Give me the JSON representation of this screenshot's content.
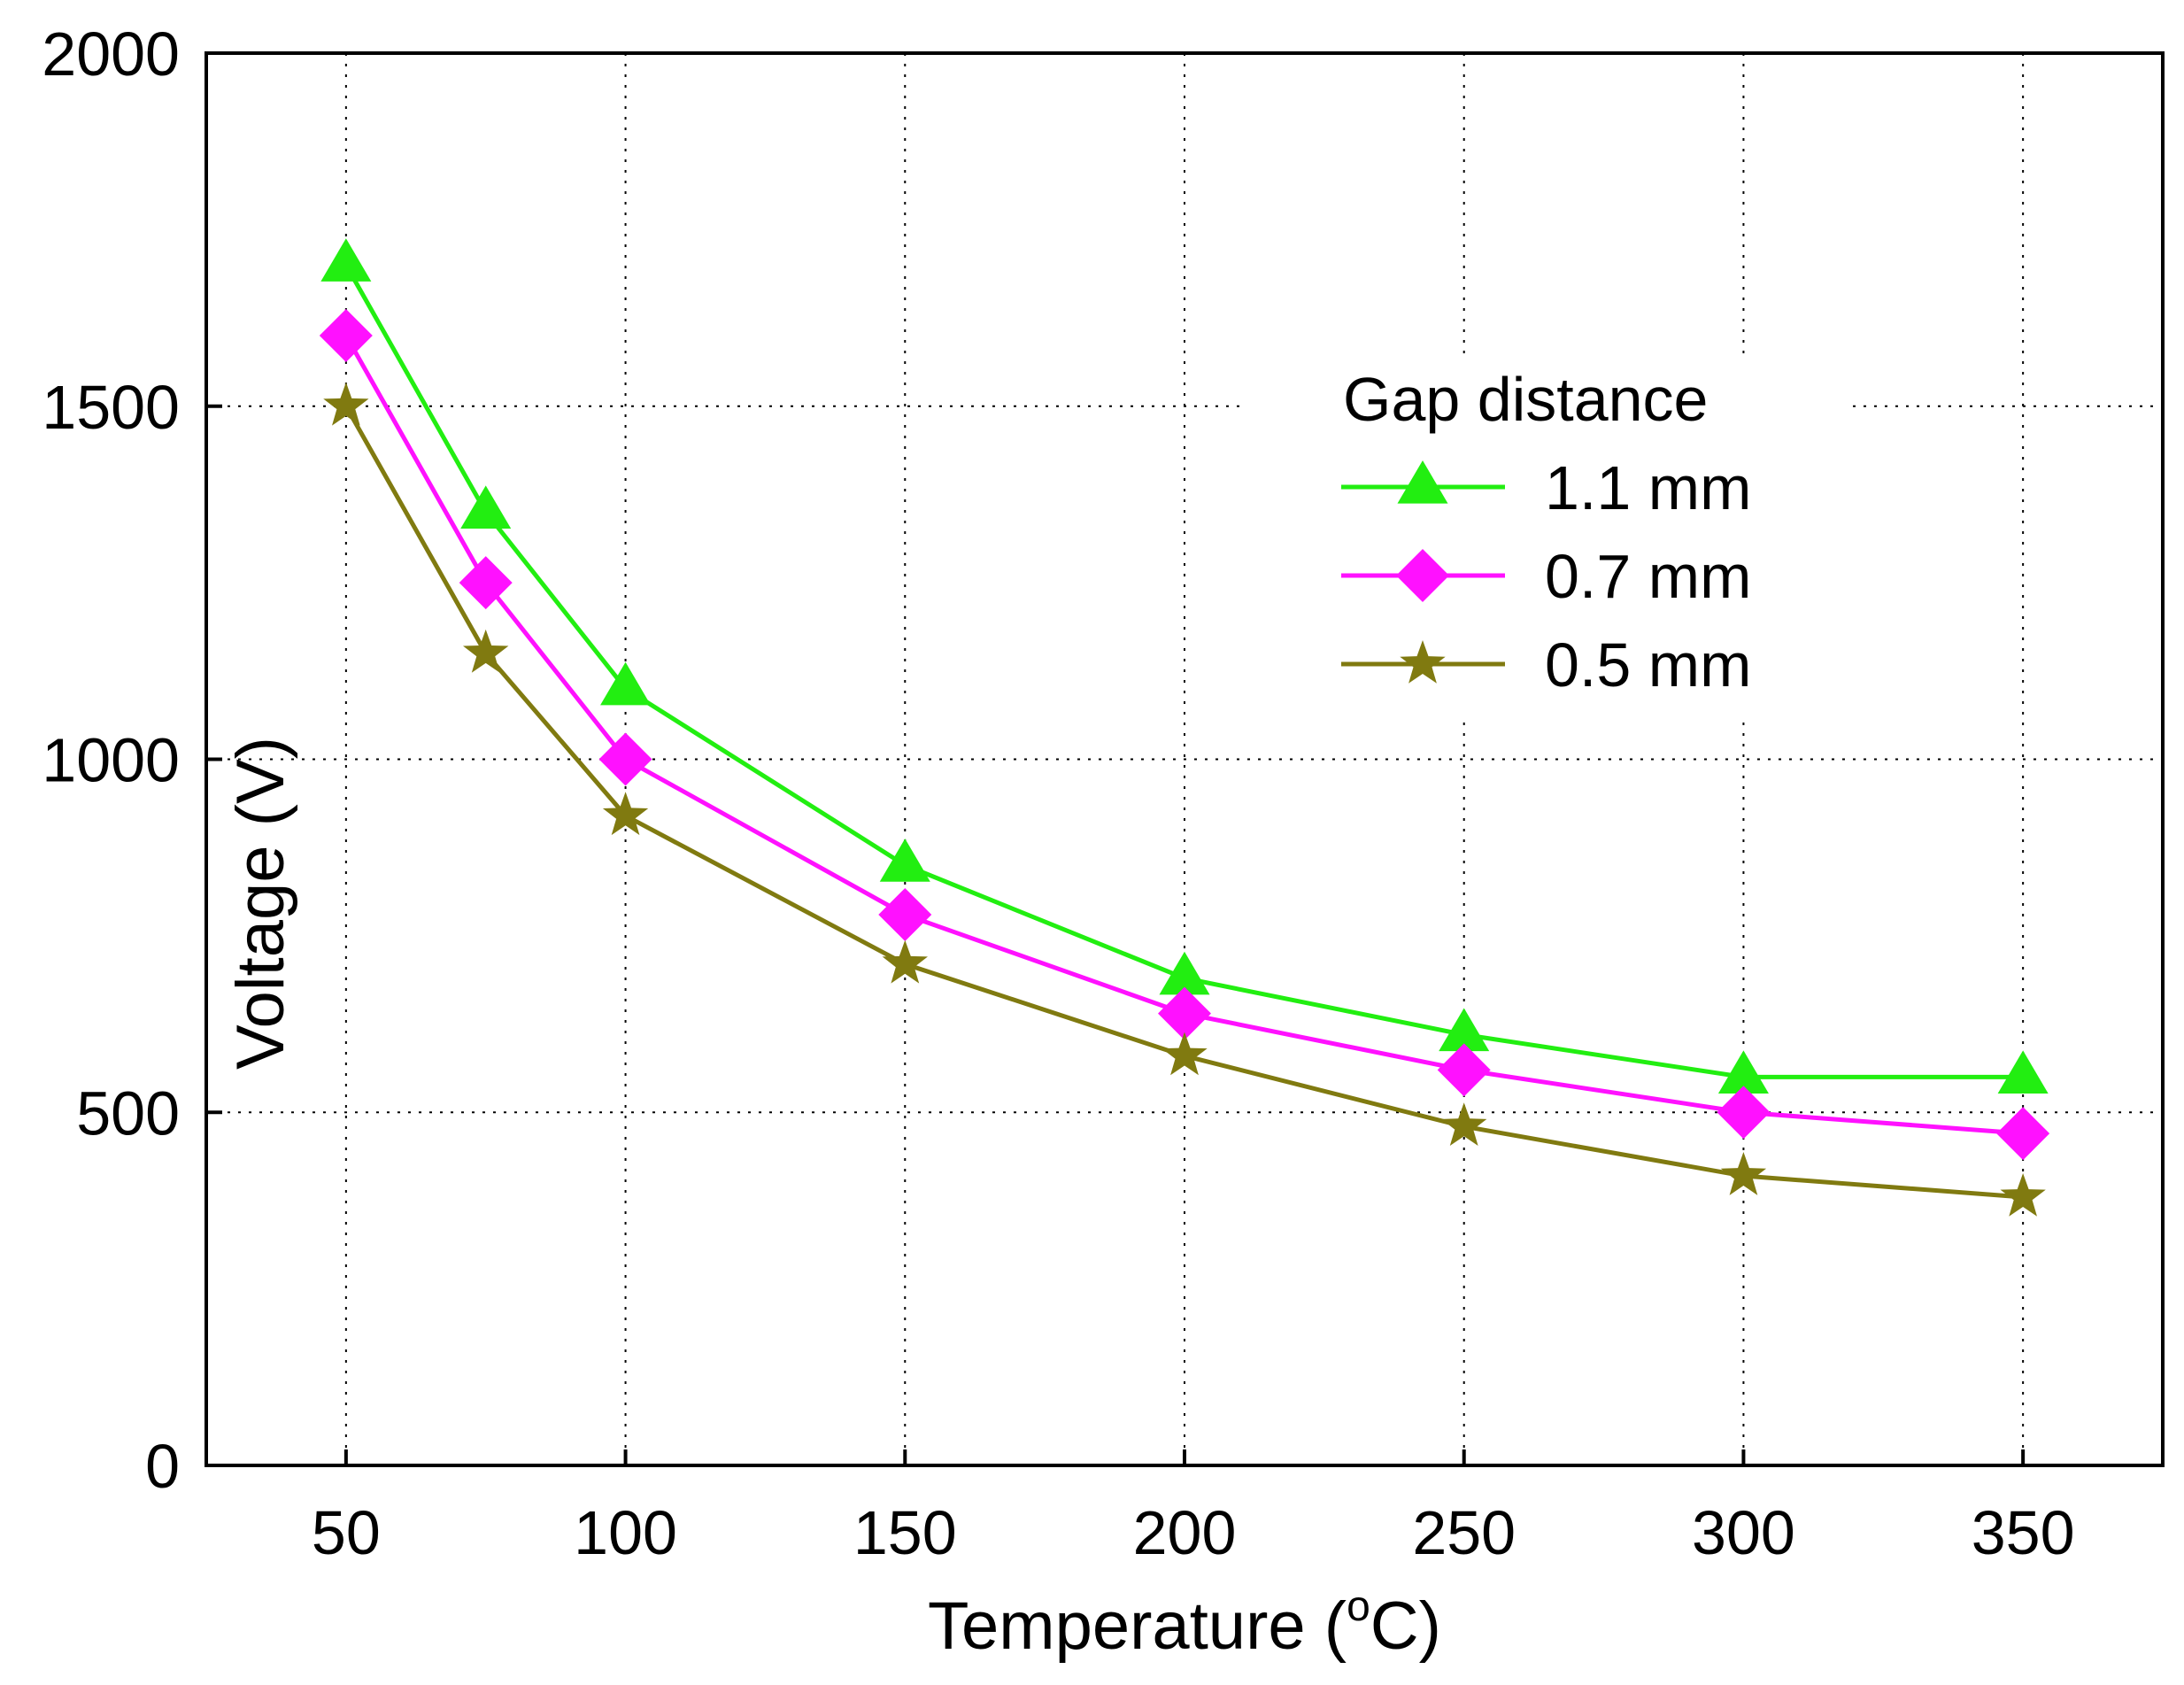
{
  "chart_data": {
    "type": "line",
    "title": "",
    "xlabel": "Temperature (",
    "xlabel_unit_sup": "o",
    "xlabel_unit": "C)",
    "ylabel": "Voltage (V)",
    "x": [
      50,
      75,
      100,
      150,
      200,
      250,
      300,
      350
    ],
    "xlim": [
      25,
      375
    ],
    "ylim": [
      0,
      2000
    ],
    "xticks": [
      50,
      100,
      150,
      200,
      250,
      300,
      350
    ],
    "yticks": [
      0,
      500,
      1000,
      1500,
      2000
    ],
    "xtick_labels": [
      "50",
      "100",
      "150",
      "200",
      "250",
      "300",
      "350"
    ],
    "ytick_labels": [
      "0",
      "500",
      "1000",
      "1500",
      "2000"
    ],
    "grid": true,
    "legend": {
      "title": "Gap distance",
      "placement": "top-right"
    },
    "series": [
      {
        "name": "1.1 mm",
        "marker": "triangle",
        "color": "#22ee11",
        "values": [
          1700,
          1350,
          1100,
          850,
          690,
          610,
          550,
          550
        ]
      },
      {
        "name": "0.7 mm",
        "marker": "diamond",
        "color": "#ff11ff",
        "values": [
          1600,
          1250,
          1000,
          780,
          640,
          560,
          500,
          470
        ]
      },
      {
        "name": "0.5 mm",
        "marker": "star",
        "color": "#807a10",
        "values": [
          1500,
          1150,
          920,
          710,
          580,
          480,
          410,
          380
        ]
      }
    ]
  }
}
